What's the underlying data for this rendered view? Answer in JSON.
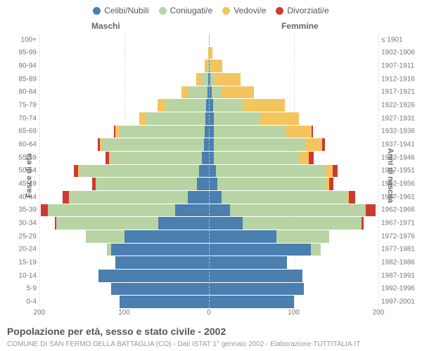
{
  "chart": {
    "type": "population-pyramid",
    "title": "Popolazione per età, sesso e stato civile - 2002",
    "subtitle": "COMUNE DI SAN FERMO DELLA BATTAGLIA (CO) - Dati ISTAT 1° gennaio 2002 - Elaborazione TUTTITALIA.IT",
    "y_label_left": "Fasce di età",
    "y_label_right": "Anni di nascita",
    "column_left": "Maschi",
    "column_right": "Femmine",
    "legend": [
      {
        "label": "Celibi/Nubili",
        "color": "#4a7fb0"
      },
      {
        "label": "Coniugati/e",
        "color": "#b8d4a5"
      },
      {
        "label": "Vedovi/e",
        "color": "#f4c55e"
      },
      {
        "label": "Divorziati/e",
        "color": "#cc3a32"
      }
    ],
    "colors": {
      "single": "#4a7fb0",
      "married": "#b8d4a5",
      "widowed": "#f4c55e",
      "divorced": "#cc3a32",
      "grid": "#dddddd",
      "bg": "#ffffff"
    },
    "x_max": 200,
    "x_ticks": [
      200,
      100,
      0,
      100,
      200
    ],
    "age_groups": [
      {
        "age": "0-4",
        "years": "1997-2001",
        "m": {
          "single": 105,
          "married": 0,
          "widowed": 0,
          "divorced": 0
        },
        "f": {
          "single": 100,
          "married": 0,
          "widowed": 0,
          "divorced": 0
        }
      },
      {
        "age": "5-9",
        "years": "1992-1996",
        "m": {
          "single": 115,
          "married": 0,
          "widowed": 0,
          "divorced": 0
        },
        "f": {
          "single": 112,
          "married": 0,
          "widowed": 0,
          "divorced": 0
        }
      },
      {
        "age": "10-14",
        "years": "1987-1991",
        "m": {
          "single": 130,
          "married": 0,
          "widowed": 0,
          "divorced": 0
        },
        "f": {
          "single": 110,
          "married": 0,
          "widowed": 0,
          "divorced": 0
        }
      },
      {
        "age": "15-19",
        "years": "1982-1986",
        "m": {
          "single": 110,
          "married": 0,
          "widowed": 0,
          "divorced": 0
        },
        "f": {
          "single": 92,
          "married": 0,
          "widowed": 0,
          "divorced": 0
        }
      },
      {
        "age": "20-24",
        "years": "1977-1981",
        "m": {
          "single": 115,
          "married": 5,
          "widowed": 0,
          "divorced": 0
        },
        "f": {
          "single": 120,
          "married": 12,
          "widowed": 0,
          "divorced": 0
        }
      },
      {
        "age": "25-29",
        "years": "1972-1976",
        "m": {
          "single": 100,
          "married": 45,
          "widowed": 0,
          "divorced": 0
        },
        "f": {
          "single": 80,
          "married": 62,
          "widowed": 0,
          "divorced": 0
        }
      },
      {
        "age": "30-34",
        "years": "1967-1971",
        "m": {
          "single": 60,
          "married": 120,
          "widowed": 0,
          "divorced": 2
        },
        "f": {
          "single": 40,
          "married": 140,
          "widowed": 0,
          "divorced": 3
        }
      },
      {
        "age": "35-39",
        "years": "1962-1966",
        "m": {
          "single": 40,
          "married": 150,
          "widowed": 0,
          "divorced": 8
        },
        "f": {
          "single": 25,
          "married": 160,
          "widowed": 0,
          "divorced": 12
        }
      },
      {
        "age": "40-44",
        "years": "1957-1961",
        "m": {
          "single": 25,
          "married": 140,
          "widowed": 0,
          "divorced": 8
        },
        "f": {
          "single": 15,
          "married": 148,
          "widowed": 2,
          "divorced": 8
        }
      },
      {
        "age": "45-49",
        "years": "1952-1956",
        "m": {
          "single": 14,
          "married": 120,
          "widowed": 0,
          "divorced": 4
        },
        "f": {
          "single": 10,
          "married": 128,
          "widowed": 4,
          "divorced": 5
        }
      },
      {
        "age": "50-54",
        "years": "1947-1951",
        "m": {
          "single": 12,
          "married": 140,
          "widowed": 2,
          "divorced": 5
        },
        "f": {
          "single": 8,
          "married": 130,
          "widowed": 8,
          "divorced": 6
        }
      },
      {
        "age": "55-59",
        "years": "1942-1946",
        "m": {
          "single": 8,
          "married": 108,
          "widowed": 2,
          "divorced": 4
        },
        "f": {
          "single": 6,
          "married": 100,
          "widowed": 12,
          "divorced": 6
        }
      },
      {
        "age": "60-64",
        "years": "1937-1941",
        "m": {
          "single": 6,
          "married": 120,
          "widowed": 3,
          "divorced": 2
        },
        "f": {
          "single": 6,
          "married": 108,
          "widowed": 20,
          "divorced": 3
        }
      },
      {
        "age": "65-69",
        "years": "1932-1936",
        "m": {
          "single": 5,
          "married": 100,
          "widowed": 5,
          "divorced": 2
        },
        "f": {
          "single": 6,
          "married": 85,
          "widowed": 30,
          "divorced": 2
        }
      },
      {
        "age": "70-74",
        "years": "1927-1931",
        "m": {
          "single": 4,
          "married": 70,
          "widowed": 8,
          "divorced": 0
        },
        "f": {
          "single": 6,
          "married": 55,
          "widowed": 45,
          "divorced": 0
        }
      },
      {
        "age": "75-79",
        "years": "1922-1926",
        "m": {
          "single": 3,
          "married": 48,
          "widowed": 10,
          "divorced": 0
        },
        "f": {
          "single": 5,
          "married": 35,
          "widowed": 50,
          "divorced": 0
        }
      },
      {
        "age": "80-84",
        "years": "1917-1921",
        "m": {
          "single": 2,
          "married": 22,
          "widowed": 8,
          "divorced": 0
        },
        "f": {
          "single": 3,
          "married": 12,
          "widowed": 38,
          "divorced": 0
        }
      },
      {
        "age": "85-89",
        "years": "1912-1916",
        "m": {
          "single": 1,
          "married": 8,
          "widowed": 6,
          "divorced": 0
        },
        "f": {
          "single": 2,
          "married": 5,
          "widowed": 30,
          "divorced": 0
        }
      },
      {
        "age": "90-94",
        "years": "1907-1911",
        "m": {
          "single": 0,
          "married": 2,
          "widowed": 3,
          "divorced": 0
        },
        "f": {
          "single": 1,
          "married": 1,
          "widowed": 14,
          "divorced": 0
        }
      },
      {
        "age": "95-99",
        "years": "1902-1906",
        "m": {
          "single": 0,
          "married": 0,
          "widowed": 1,
          "divorced": 0
        },
        "f": {
          "single": 0,
          "married": 0,
          "widowed": 4,
          "divorced": 0
        }
      },
      {
        "age": "100+",
        "years": "≤ 1901",
        "m": {
          "single": 0,
          "married": 0,
          "widowed": 0,
          "divorced": 0
        },
        "f": {
          "single": 0,
          "married": 0,
          "widowed": 1,
          "divorced": 0
        }
      }
    ]
  }
}
